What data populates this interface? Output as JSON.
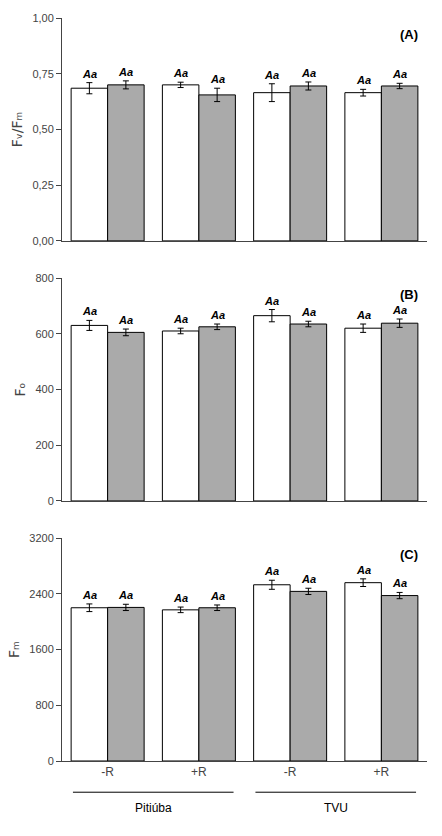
{
  "chart_data": [
    {
      "type": "bar",
      "categories": [
        "-R",
        "+R",
        "-R",
        "+R"
      ],
      "series": [
        {
          "color": "white",
          "values": [
            0.685,
            0.7,
            0.665,
            0.665
          ],
          "errors": [
            0.025,
            0.012,
            0.04,
            0.015
          ],
          "letters": [
            "Aa",
            "Aa",
            "Aa",
            "Aa"
          ]
        },
        {
          "color": "#aaaaaa",
          "values": [
            0.7,
            0.655,
            0.695,
            0.695
          ],
          "errors": [
            0.018,
            0.03,
            0.018,
            0.012
          ],
          "letters": [
            "Aa",
            "Aa",
            "Aa",
            "Aa"
          ]
        }
      ],
      "ylabel": "Fᵥ/Fₘ",
      "ylim": [
        0.0,
        1.0
      ],
      "yticks": [
        {
          "value": 0.0,
          "label": "0,00"
        },
        {
          "value": 0.25,
          "label": "0,25"
        },
        {
          "value": 0.5,
          "label": "0,50"
        },
        {
          "value": 0.75,
          "label": "0,75"
        },
        {
          "value": 1.0,
          "label": "1,00"
        }
      ],
      "annotations": [
        "(A)"
      ],
      "grid": false,
      "tick_labels": "y"
    },
    {
      "type": "bar",
      "categories": [
        "-R",
        "+R",
        "-R",
        "+R"
      ],
      "series": [
        {
          "color": "white",
          "values": [
            630,
            610,
            665,
            620
          ],
          "errors": [
            18,
            10,
            22,
            15
          ],
          "letters": [
            "Aa",
            "Aa",
            "Aa",
            "Aa"
          ]
        },
        {
          "color": "#aaaaaa",
          "values": [
            605,
            625,
            635,
            638
          ],
          "errors": [
            12,
            10,
            10,
            15
          ],
          "letters": [
            "Aa",
            "Aa",
            "Aa",
            "Aa"
          ]
        }
      ],
      "ylabel": "Fₒ",
      "ylim": [
        0,
        800
      ],
      "yticks": [
        0,
        200,
        400,
        600,
        800
      ],
      "annotations": [
        "(B)"
      ],
      "grid": false,
      "tick_labels": "y"
    },
    {
      "type": "bar",
      "categories": [
        "-R",
        "+R",
        "-R",
        "+R"
      ],
      "groups": [
        "Pitiúba",
        "Pitiúba",
        "TVU",
        "TVU"
      ],
      "series": [
        {
          "color": "white",
          "values": [
            2200,
            2170,
            2530,
            2560
          ],
          "errors": [
            55,
            40,
            65,
            55
          ],
          "letters": [
            "Aa",
            "Aa",
            "Aa",
            "Aa"
          ]
        },
        {
          "color": "#aaaaaa",
          "values": [
            2205,
            2200,
            2435,
            2375
          ],
          "errors": [
            45,
            40,
            45,
            45
          ],
          "letters": [
            "Aa",
            "Aa",
            "Aa",
            "Aa"
          ]
        }
      ],
      "ylabel": "Fₘ",
      "ylim": [
        0,
        3200
      ],
      "yticks": [
        0,
        800,
        1600,
        2400,
        3200
      ],
      "annotations": [
        "(C)"
      ],
      "grid": false
    }
  ]
}
